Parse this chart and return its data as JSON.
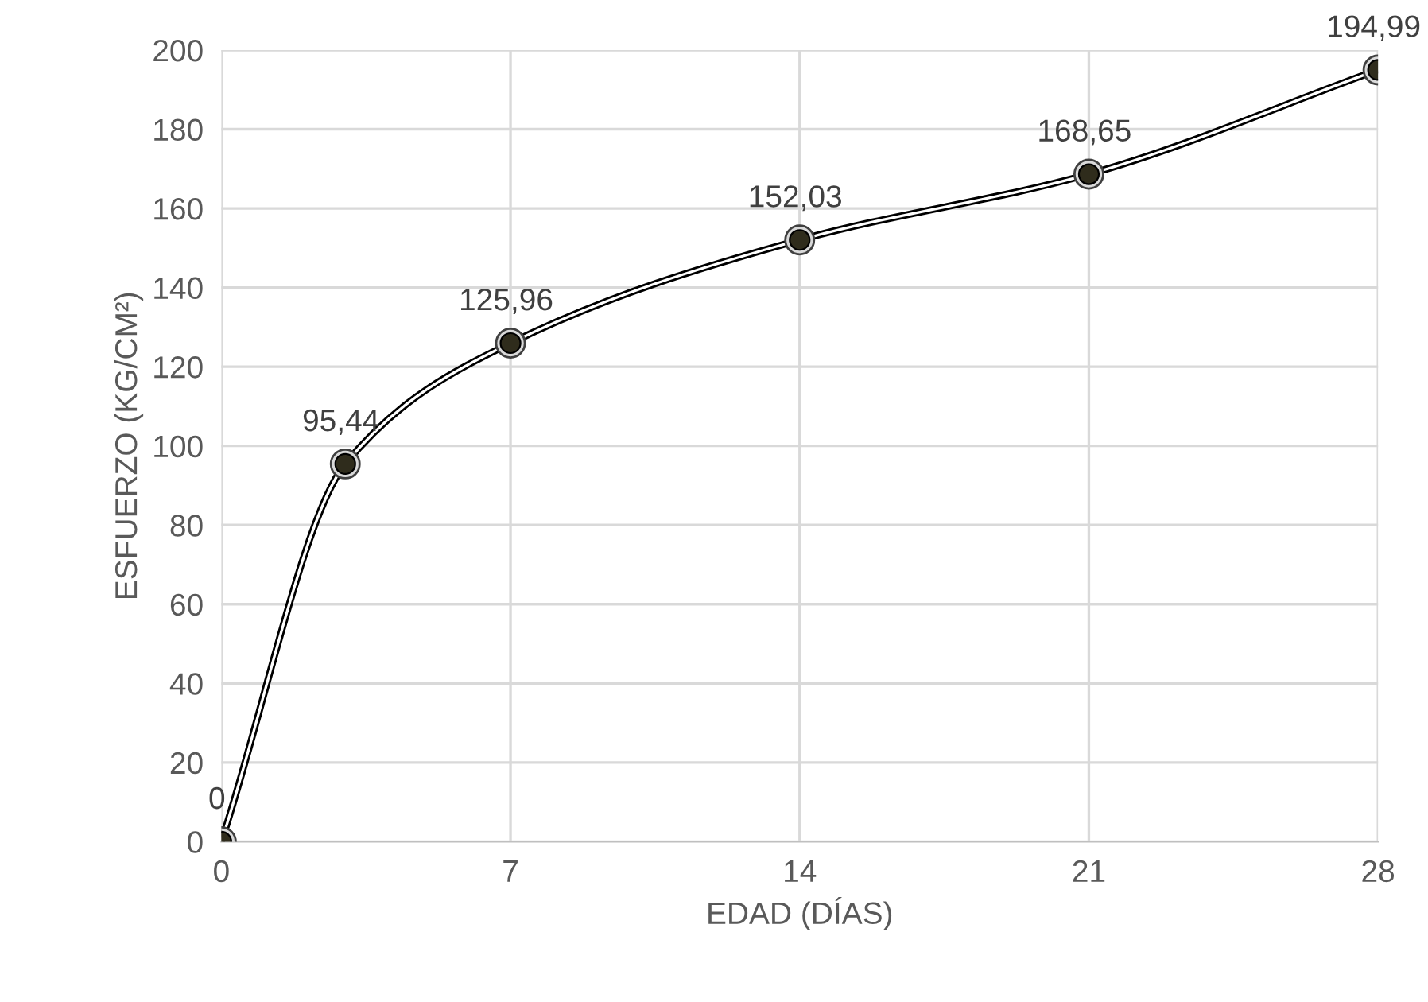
{
  "chart_data": {
    "type": "line",
    "xlabel": "EDAD (DÍAS)",
    "ylabel": "ESFUERZO (KG/CM²)",
    "x": [
      0,
      3,
      7,
      14,
      21,
      28
    ],
    "series": [
      {
        "color": "#2f2c1c",
        "values": [
          0,
          95.44,
          125.96,
          152.03,
          168.65,
          194.99
        ],
        "value_labels": [
          "0",
          "95,44",
          "125,96",
          "152,03",
          "168,65",
          "194,99"
        ]
      }
    ],
    "xlim": [
      0,
      28
    ],
    "xticks": [
      0,
      7,
      14,
      21,
      28
    ],
    "ylim": [
      0,
      200
    ],
    "yticks": [
      0,
      20,
      40,
      60,
      80,
      100,
      120,
      140,
      160,
      180,
      200
    ],
    "grid": true,
    "marker": "circle",
    "line_style": "solid"
  }
}
